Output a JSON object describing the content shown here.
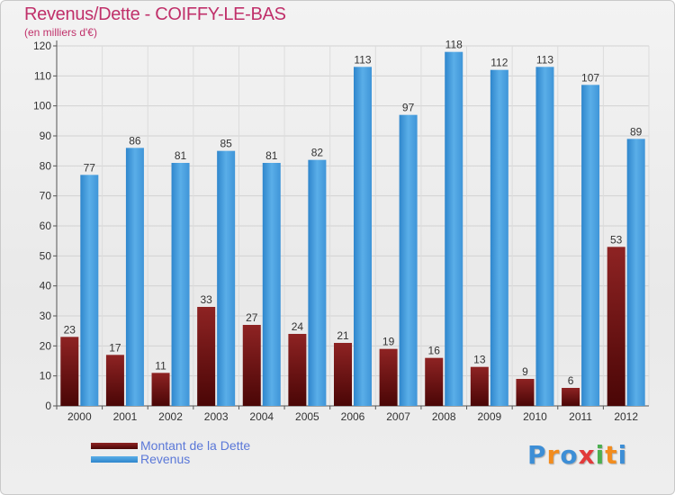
{
  "title": "Revenus/Dette - COIFFY-LE-BAS",
  "subtitle": "(en milliers d'€)",
  "legend": {
    "items": [
      {
        "label": "Montant de la Dette",
        "color": "#7a1414"
      },
      {
        "label": "Revenus",
        "color": "#4ea2e0"
      }
    ]
  },
  "logo": {
    "text": "Proxiti",
    "letters": [
      {
        "ch": "P",
        "color": "#3d8ed6"
      },
      {
        "ch": "r",
        "color": "#f28c1e"
      },
      {
        "ch": "o",
        "color": "#3d8ed6"
      },
      {
        "ch": "x",
        "color": "#e23a3a"
      },
      {
        "ch": "i",
        "color": "#4caf50"
      },
      {
        "ch": "t",
        "color": "#f28c1e"
      },
      {
        "ch": "i",
        "color": "#3d8ed6"
      }
    ]
  },
  "chart_data": {
    "type": "bar",
    "title": "Revenus/Dette - COIFFY-LE-BAS",
    "subtitle": "(en milliers d'€)",
    "categories": [
      "2000",
      "2001",
      "2002",
      "2003",
      "2004",
      "2005",
      "2006",
      "2007",
      "2008",
      "2009",
      "2010",
      "2011",
      "2012"
    ],
    "series": [
      {
        "name": "Montant de la Dette",
        "color": "#7a1414",
        "values": [
          23,
          17,
          11,
          33,
          27,
          24,
          21,
          19,
          16,
          13,
          9,
          6,
          53
        ]
      },
      {
        "name": "Revenus",
        "color": "#4ea2e0",
        "values": [
          77,
          86,
          81,
          85,
          81,
          82,
          113,
          97,
          118,
          112,
          113,
          107,
          89
        ]
      }
    ],
    "ylim": [
      0,
      120
    ],
    "yticks": [
      0,
      10,
      20,
      30,
      40,
      50,
      60,
      70,
      80,
      90,
      100,
      110,
      120
    ],
    "grid": true,
    "legend_position": "bottom-left"
  }
}
